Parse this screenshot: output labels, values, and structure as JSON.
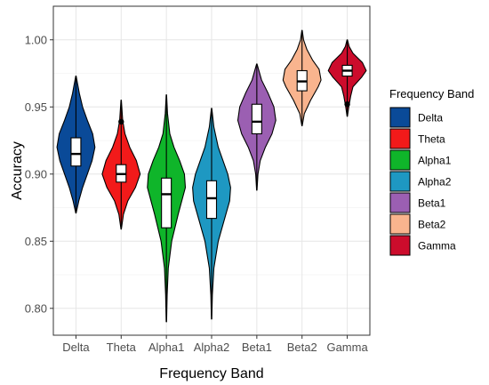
{
  "chart_data": {
    "type": "violin",
    "title": "",
    "xlabel": "Frequency Band",
    "ylabel": "Accuracy",
    "ylim": [
      0.78,
      1.025
    ],
    "yticks": [
      "0.80",
      "0.85",
      "0.90",
      "0.95",
      "1.00"
    ],
    "categories": [
      "Delta",
      "Theta",
      "Alpha1",
      "Alpha2",
      "Beta1",
      "Beta2",
      "Gamma"
    ],
    "colors": [
      "#0a4a98",
      "#f21a1a",
      "#0fb52a",
      "#1e98c2",
      "#9b5fb2",
      "#f9b48e",
      "#cc0c2c"
    ],
    "legend": {
      "title": "Frequency Band",
      "position": "right",
      "items": [
        "Delta",
        "Theta",
        "Alpha1",
        "Alpha2",
        "Beta1",
        "Beta2",
        "Gamma"
      ]
    },
    "grid": true,
    "series": [
      {
        "name": "Delta",
        "min": 0.871,
        "max": 0.973,
        "q1": 0.906,
        "median": 0.915,
        "q3": 0.927,
        "profile": [
          [
            0.871,
            0.01
          ],
          [
            0.88,
            0.15
          ],
          [
            0.89,
            0.35
          ],
          [
            0.9,
            0.6
          ],
          [
            0.91,
            0.85
          ],
          [
            0.92,
            1.0
          ],
          [
            0.93,
            0.88
          ],
          [
            0.94,
            0.6
          ],
          [
            0.95,
            0.35
          ],
          [
            0.96,
            0.18
          ],
          [
            0.973,
            0.01
          ]
        ],
        "outliers": []
      },
      {
        "name": "Theta",
        "min": 0.859,
        "max": 0.955,
        "q1": 0.894,
        "median": 0.9,
        "q3": 0.907,
        "profile": [
          [
            0.859,
            0.01
          ],
          [
            0.87,
            0.12
          ],
          [
            0.88,
            0.35
          ],
          [
            0.89,
            0.75
          ],
          [
            0.9,
            1.0
          ],
          [
            0.91,
            0.8
          ],
          [
            0.92,
            0.45
          ],
          [
            0.93,
            0.2
          ],
          [
            0.94,
            0.08
          ],
          [
            0.955,
            0.01
          ]
        ],
        "outliers": [
          0.939
        ]
      },
      {
        "name": "Alpha1",
        "min": 0.79,
        "max": 0.959,
        "q1": 0.86,
        "median": 0.885,
        "q3": 0.897,
        "profile": [
          [
            0.79,
            0.01
          ],
          [
            0.81,
            0.04
          ],
          [
            0.83,
            0.1
          ],
          [
            0.85,
            0.28
          ],
          [
            0.87,
            0.62
          ],
          [
            0.89,
            1.0
          ],
          [
            0.9,
            0.95
          ],
          [
            0.91,
            0.7
          ],
          [
            0.92,
            0.4
          ],
          [
            0.93,
            0.18
          ],
          [
            0.945,
            0.06
          ],
          [
            0.959,
            0.01
          ]
        ],
        "outliers": []
      },
      {
        "name": "Alpha2",
        "min": 0.792,
        "max": 0.949,
        "q1": 0.867,
        "median": 0.882,
        "q3": 0.895,
        "profile": [
          [
            0.792,
            0.01
          ],
          [
            0.81,
            0.04
          ],
          [
            0.83,
            0.12
          ],
          [
            0.85,
            0.35
          ],
          [
            0.87,
            0.75
          ],
          [
            0.88,
            0.95
          ],
          [
            0.89,
            1.0
          ],
          [
            0.9,
            0.85
          ],
          [
            0.91,
            0.6
          ],
          [
            0.92,
            0.35
          ],
          [
            0.935,
            0.12
          ],
          [
            0.949,
            0.01
          ]
        ],
        "outliers": []
      },
      {
        "name": "Beta1",
        "min": 0.888,
        "max": 0.982,
        "q1": 0.93,
        "median": 0.939,
        "q3": 0.952,
        "profile": [
          [
            0.888,
            0.01
          ],
          [
            0.9,
            0.06
          ],
          [
            0.91,
            0.18
          ],
          [
            0.92,
            0.45
          ],
          [
            0.93,
            0.8
          ],
          [
            0.94,
            1.0
          ],
          [
            0.95,
            0.9
          ],
          [
            0.96,
            0.6
          ],
          [
            0.97,
            0.25
          ],
          [
            0.982,
            0.01
          ]
        ],
        "outliers": []
      },
      {
        "name": "Beta2",
        "min": 0.936,
        "max": 1.007,
        "q1": 0.962,
        "median": 0.969,
        "q3": 0.977,
        "profile": [
          [
            0.936,
            0.01
          ],
          [
            0.945,
            0.12
          ],
          [
            0.955,
            0.45
          ],
          [
            0.965,
            0.85
          ],
          [
            0.97,
            1.0
          ],
          [
            0.978,
            0.9
          ],
          [
            0.985,
            0.55
          ],
          [
            0.993,
            0.25
          ],
          [
            1.0,
            0.08
          ],
          [
            1.007,
            0.01
          ]
        ],
        "outliers": []
      },
      {
        "name": "Gamma",
        "min": 0.943,
        "max": 1.0,
        "q1": 0.973,
        "median": 0.977,
        "q3": 0.981,
        "profile": [
          [
            0.943,
            0.01
          ],
          [
            0.95,
            0.08
          ],
          [
            0.958,
            0.18
          ],
          [
            0.965,
            0.3
          ],
          [
            0.972,
            0.75
          ],
          [
            0.977,
            1.0
          ],
          [
            0.983,
            0.8
          ],
          [
            0.99,
            0.3
          ],
          [
            0.995,
            0.1
          ],
          [
            1.0,
            0.01
          ]
        ],
        "outliers": [
          0.952
        ]
      }
    ]
  }
}
